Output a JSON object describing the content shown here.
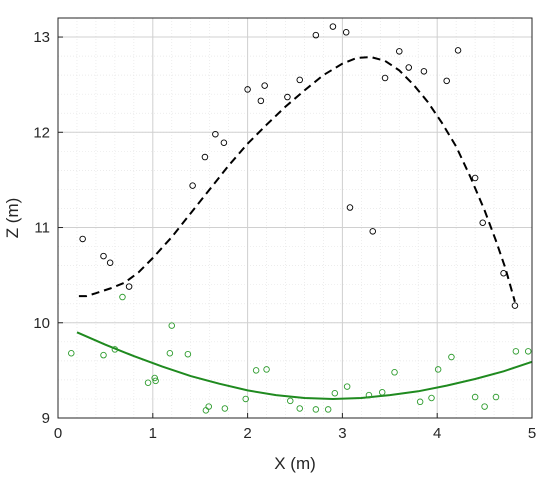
{
  "chart_data": {
    "type": "scatter",
    "title": "",
    "xlabel": "X (m)",
    "ylabel": "Z (m)",
    "xlim": [
      0,
      5
    ],
    "ylim": [
      9,
      13.2
    ],
    "xticks": [
      "0",
      "1",
      "2",
      "3",
      "4",
      "5"
    ],
    "yticks": [
      "9",
      "10",
      "11",
      "12",
      "13"
    ],
    "grid": true,
    "minor_grid": true,
    "series": [
      {
        "marker": "circle",
        "color": "#000000",
        "points": [
          [
            0.26,
            10.88
          ],
          [
            0.48,
            10.7
          ],
          [
            0.55,
            10.63
          ],
          [
            0.75,
            10.38
          ],
          [
            1.42,
            11.44
          ],
          [
            1.55,
            11.74
          ],
          [
            1.66,
            11.98
          ],
          [
            1.75,
            11.89
          ],
          [
            2.0,
            12.45
          ],
          [
            2.14,
            12.33
          ],
          [
            2.18,
            12.49
          ],
          [
            2.42,
            12.37
          ],
          [
            2.55,
            12.55
          ],
          [
            2.72,
            13.02
          ],
          [
            2.9,
            13.11
          ],
          [
            3.04,
            13.05
          ],
          [
            3.08,
            11.21
          ],
          [
            3.32,
            10.96
          ],
          [
            3.45,
            12.57
          ],
          [
            3.6,
            12.85
          ],
          [
            3.7,
            12.68
          ],
          [
            3.86,
            12.64
          ],
          [
            4.1,
            12.54
          ],
          [
            4.22,
            12.86
          ],
          [
            4.4,
            11.52
          ],
          [
            4.48,
            11.05
          ],
          [
            4.7,
            10.52
          ],
          [
            4.82,
            10.18
          ]
        ]
      },
      {
        "marker": "circle",
        "color": "#2e9c2e",
        "points": [
          [
            0.14,
            9.68
          ],
          [
            0.48,
            9.66
          ],
          [
            0.6,
            9.72
          ],
          [
            0.68,
            10.27
          ],
          [
            0.95,
            9.37
          ],
          [
            1.02,
            9.42
          ],
          [
            1.03,
            9.39
          ],
          [
            1.2,
            9.97
          ],
          [
            1.18,
            9.68
          ],
          [
            1.37,
            9.67
          ],
          [
            1.56,
            9.08
          ],
          [
            1.59,
            9.12
          ],
          [
            1.76,
            9.1
          ],
          [
            1.98,
            9.2
          ],
          [
            2.09,
            9.5
          ],
          [
            2.2,
            9.51
          ],
          [
            2.45,
            9.18
          ],
          [
            2.55,
            9.1
          ],
          [
            2.72,
            9.09
          ],
          [
            2.85,
            9.09
          ],
          [
            2.92,
            9.26
          ],
          [
            3.05,
            9.33
          ],
          [
            3.28,
            9.24
          ],
          [
            3.42,
            9.27
          ],
          [
            3.55,
            9.48
          ],
          [
            3.82,
            9.17
          ],
          [
            3.94,
            9.21
          ],
          [
            4.01,
            9.51
          ],
          [
            4.15,
            9.64
          ],
          [
            4.4,
            9.22
          ],
          [
            4.5,
            9.12
          ],
          [
            4.62,
            9.22
          ],
          [
            4.83,
            9.7
          ],
          [
            4.96,
            9.7
          ]
        ]
      },
      {
        "style": "dashed",
        "color": "#000000",
        "points": [
          [
            0.22,
            10.28
          ],
          [
            0.3,
            10.28
          ],
          [
            0.4,
            10.31
          ],
          [
            0.55,
            10.36
          ],
          [
            0.7,
            10.42
          ],
          [
            0.85,
            10.53
          ],
          [
            1.0,
            10.68
          ],
          [
            1.2,
            10.9
          ],
          [
            1.4,
            11.15
          ],
          [
            1.6,
            11.4
          ],
          [
            1.8,
            11.65
          ],
          [
            2.0,
            11.88
          ],
          [
            2.2,
            12.08
          ],
          [
            2.4,
            12.27
          ],
          [
            2.6,
            12.44
          ],
          [
            2.8,
            12.6
          ],
          [
            3.0,
            12.72
          ],
          [
            3.15,
            12.78
          ],
          [
            3.3,
            12.79
          ],
          [
            3.45,
            12.75
          ],
          [
            3.6,
            12.65
          ],
          [
            3.75,
            12.5
          ],
          [
            3.9,
            12.32
          ],
          [
            4.05,
            12.1
          ],
          [
            4.2,
            11.85
          ],
          [
            4.35,
            11.53
          ],
          [
            4.5,
            11.18
          ],
          [
            4.62,
            10.86
          ],
          [
            4.72,
            10.57
          ],
          [
            4.82,
            10.22
          ]
        ]
      },
      {
        "style": "solid",
        "color": "#1f8a1f",
        "points": [
          [
            0.2,
            9.9
          ],
          [
            0.5,
            9.77
          ],
          [
            0.8,
            9.65
          ],
          [
            1.1,
            9.54
          ],
          [
            1.4,
            9.44
          ],
          [
            1.7,
            9.36
          ],
          [
            2.0,
            9.29
          ],
          [
            2.3,
            9.24
          ],
          [
            2.6,
            9.21
          ],
          [
            2.9,
            9.2
          ],
          [
            3.2,
            9.21
          ],
          [
            3.5,
            9.24
          ],
          [
            3.8,
            9.28
          ],
          [
            4.1,
            9.34
          ],
          [
            4.4,
            9.41
          ],
          [
            4.7,
            9.49
          ],
          [
            5.0,
            9.59
          ]
        ]
      }
    ]
  }
}
